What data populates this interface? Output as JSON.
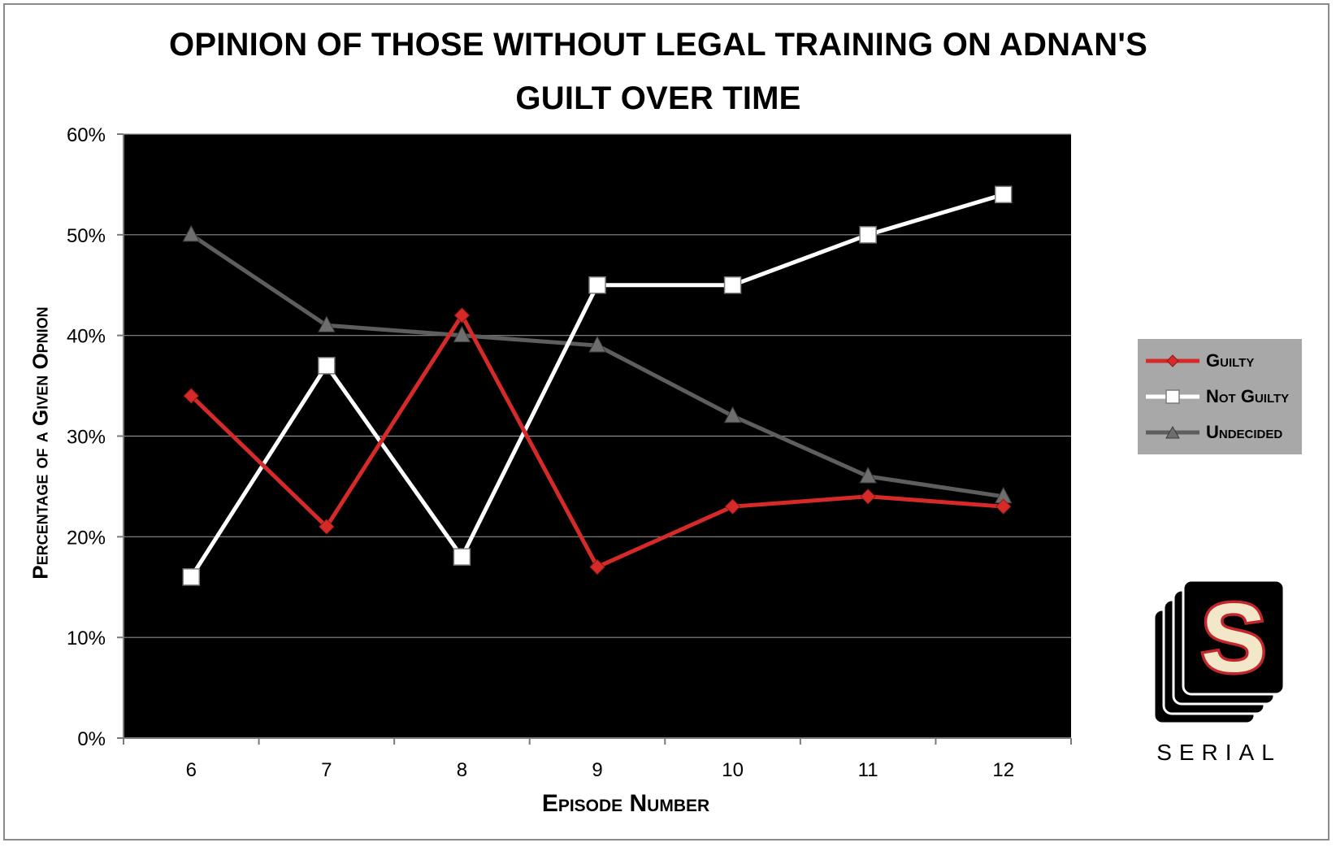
{
  "chart_data": {
    "type": "line",
    "title": "OPINION OF THOSE WITHOUT LEGAL TRAINING ON ADNAN'S GUILT OVER TIME",
    "title_lines": [
      "OPINION OF THOSE WITHOUT LEGAL TRAINING ON ADNAN'S",
      "GUILT OVER TIME"
    ],
    "xlabel": "Episode Number",
    "ylabel": "Percentage of a Given Opnion",
    "x": [
      6,
      7,
      8,
      9,
      10,
      11,
      12
    ],
    "ylim": [
      0,
      60
    ],
    "ytick_values": [
      0,
      10,
      20,
      30,
      40,
      50,
      60
    ],
    "yticks": [
      "0%",
      "10%",
      "20%",
      "30%",
      "40%",
      "50%",
      "60%"
    ],
    "grid": true,
    "plot_background": "#000000",
    "legend_position": "right",
    "series": [
      {
        "name": "Guilty",
        "values": [
          34,
          21,
          42,
          17,
          23,
          24,
          23
        ],
        "color": "#d62a28",
        "marker": "diamond"
      },
      {
        "name": "Not Guilty",
        "values": [
          16,
          37,
          18,
          45,
          45,
          50,
          54
        ],
        "color": "#ffffff",
        "marker": "square"
      },
      {
        "name": "Undecided",
        "values": [
          50,
          41,
          40,
          39,
          32,
          26,
          24
        ],
        "color": "#5e5e5e",
        "marker": "triangle"
      }
    ]
  },
  "logo": {
    "text": "SERIAL",
    "letter": "S",
    "icon": "serial-logo-icon"
  }
}
